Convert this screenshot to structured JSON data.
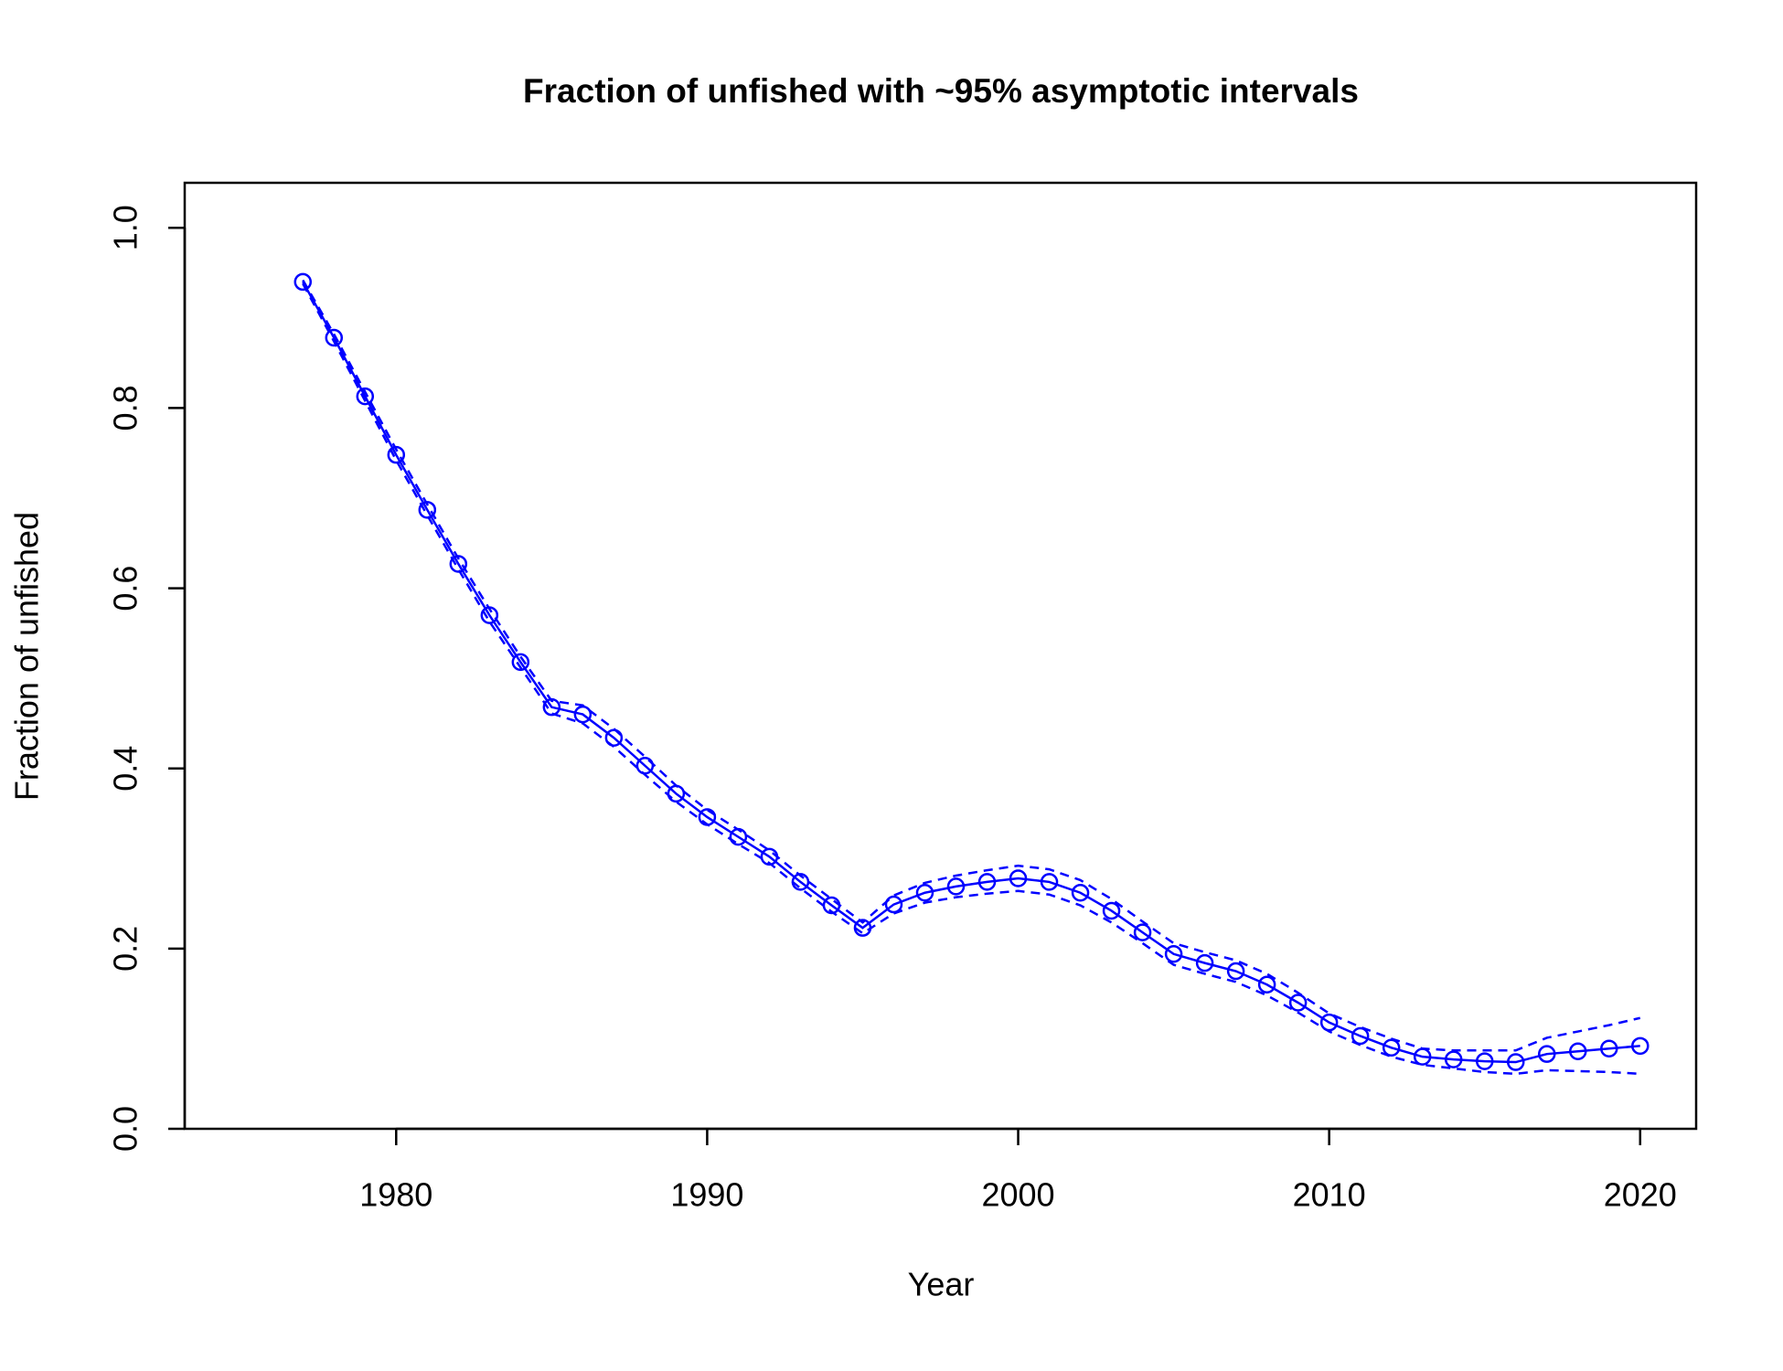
{
  "chart_data": {
    "type": "line",
    "title": "Fraction of unfished with ~95% asymptotic intervals",
    "xlabel": "Year",
    "ylabel": "Fraction of unfished",
    "color": "#0000ff",
    "x": [
      1977,
      1978,
      1979,
      1980,
      1981,
      1982,
      1983,
      1984,
      1985,
      1986,
      1987,
      1988,
      1989,
      1990,
      1991,
      1992,
      1993,
      1994,
      1995,
      1996,
      1997,
      1998,
      1999,
      2000,
      2001,
      2002,
      2003,
      2004,
      2005,
      2006,
      2007,
      2008,
      2009,
      2010,
      2011,
      2012,
      2013,
      2014,
      2015,
      2016,
      2017,
      2018,
      2019,
      2020
    ],
    "values": [
      0.94,
      0.878,
      0.813,
      0.748,
      0.687,
      0.627,
      0.57,
      0.518,
      0.468,
      0.46,
      0.434,
      0.403,
      0.372,
      0.346,
      0.324,
      0.302,
      0.274,
      0.248,
      0.223,
      0.249,
      0.262,
      0.269,
      0.274,
      0.278,
      0.274,
      0.262,
      0.242,
      0.218,
      0.194,
      0.184,
      0.175,
      0.16,
      0.14,
      0.118,
      0.103,
      0.09,
      0.08,
      0.077,
      0.075,
      0.074,
      0.083,
      0.086,
      0.089,
      0.092
    ],
    "upper": [
      0.942,
      0.882,
      0.818,
      0.754,
      0.693,
      0.633,
      0.577,
      0.524,
      0.475,
      0.47,
      0.444,
      0.413,
      0.381,
      0.354,
      0.332,
      0.309,
      0.281,
      0.255,
      0.229,
      0.259,
      0.273,
      0.281,
      0.287,
      0.292,
      0.288,
      0.276,
      0.255,
      0.23,
      0.206,
      0.196,
      0.187,
      0.172,
      0.151,
      0.128,
      0.113,
      0.1,
      0.089,
      0.087,
      0.087,
      0.087,
      0.101,
      0.108,
      0.115,
      0.123
    ],
    "lower": [
      0.938,
      0.874,
      0.808,
      0.742,
      0.681,
      0.621,
      0.563,
      0.512,
      0.461,
      0.45,
      0.424,
      0.393,
      0.363,
      0.338,
      0.316,
      0.295,
      0.267,
      0.241,
      0.217,
      0.239,
      0.251,
      0.257,
      0.261,
      0.264,
      0.26,
      0.248,
      0.229,
      0.206,
      0.182,
      0.172,
      0.163,
      0.148,
      0.129,
      0.108,
      0.093,
      0.08,
      0.071,
      0.067,
      0.063,
      0.061,
      0.065,
      0.064,
      0.063,
      0.061
    ],
    "xlim": [
      1973.2,
      2021.8
    ],
    "ylim": [
      0,
      1.05
    ],
    "xticks": [
      1980,
      1990,
      2000,
      2010,
      2020
    ],
    "yticks": [
      {
        "value": 0,
        "label": "0.0"
      },
      0.2,
      0.4,
      0.6,
      0.8,
      {
        "value": 1,
        "label": "1.0"
      }
    ]
  }
}
